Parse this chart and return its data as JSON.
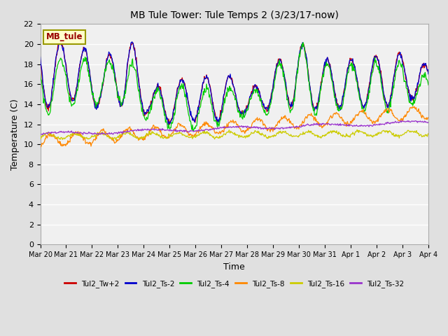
{
  "title": "MB Tule Tower: Tule Temps 2 (3/23/17-now)",
  "xlabel": "Time",
  "ylabel": "Temperature (C)",
  "ylim": [
    0,
    22
  ],
  "yticks": [
    0,
    2,
    4,
    6,
    8,
    10,
    12,
    14,
    16,
    18,
    20,
    22
  ],
  "x_labels": [
    "Mar 20",
    "Mar 21",
    "Mar 22",
    "Mar 23",
    "Mar 24",
    "Mar 25",
    "Mar 26",
    "Mar 27",
    "Mar 28",
    "Mar 29",
    "Mar 30",
    "Mar 31",
    "Apr 1",
    "Apr 2",
    "Apr 3",
    "Apr 4"
  ],
  "bg_outer": "#e0e0e0",
  "bg_inner": "#f0f0f0",
  "grid_color": "#ffffff",
  "series_colors": [
    "#cc0000",
    "#0000cc",
    "#00cc00",
    "#ff8800",
    "#cccc00",
    "#9933cc"
  ],
  "series_labels": [
    "Tul2_Tw+2",
    "Tul2_Ts-2",
    "Tul2_Ts-4",
    "Tul2_Ts-8",
    "Tul2_Ts-16",
    "Tul2_Ts-32"
  ],
  "legend_box_color": "#ffffcc",
  "legend_box_edge": "#999900",
  "legend_box_text": "MB_tule",
  "legend_box_text_color": "#990000",
  "tw2_peaks": [
    20.3,
    13.2,
    20.0,
    14.8,
    18.1,
    13.5,
    21.5,
    14.0,
    15.5,
    13.5,
    16.5,
    12.0,
    16.5,
    12.5,
    17.5,
    12.0,
    15.0,
    13.0,
    17.5,
    13.2,
    20.5,
    14.0,
    18.5,
    13.5,
    18.5,
    13.5,
    18.5,
    14.0,
    19.5,
    13.5,
    18.0,
    14.5
  ],
  "ts4_peaks": [
    18.5,
    12.7,
    18.5,
    14.0,
    18.0,
    13.8,
    19.0,
    14.5,
    15.2,
    13.0,
    16.0,
    11.5,
    15.5,
    11.5,
    16.0,
    11.5,
    14.8,
    12.8,
    17.0,
    12.8,
    20.5,
    13.5,
    18.0,
    13.0,
    18.0,
    13.3,
    18.0,
    13.5,
    18.5,
    13.0,
    17.0,
    14.0
  ]
}
